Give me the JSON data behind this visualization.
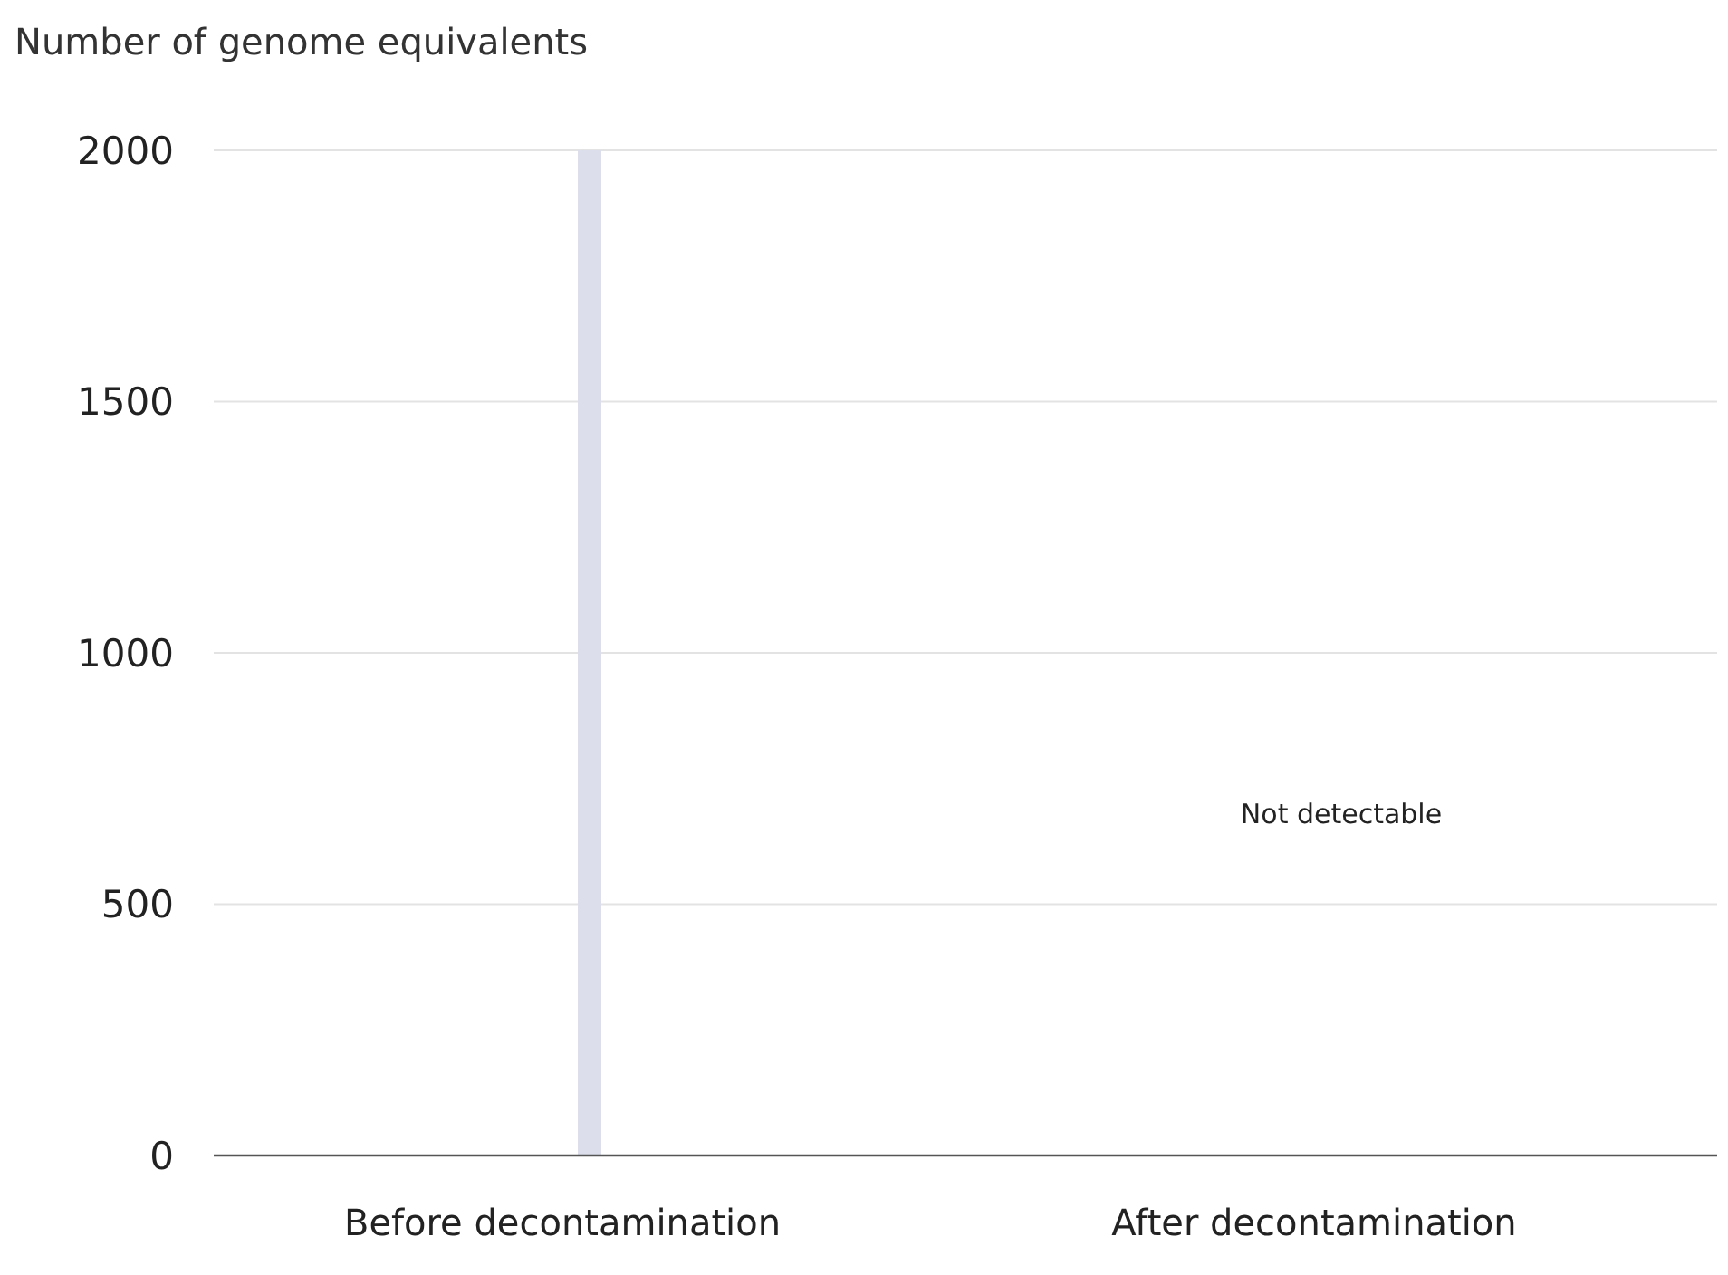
{
  "chart_data": {
    "type": "bar",
    "ylabel": "Number of genome equivalents",
    "categories": [
      "Before decontamination",
      "After decontamination"
    ],
    "values": [
      2000,
      null
    ],
    "color": "#dcdfeb",
    "ylim": [
      0,
      2000
    ],
    "yticks": [
      0,
      500,
      1000,
      1500,
      2000
    ],
    "grid": "y",
    "annotations": [
      "Not detectable"
    ]
  }
}
